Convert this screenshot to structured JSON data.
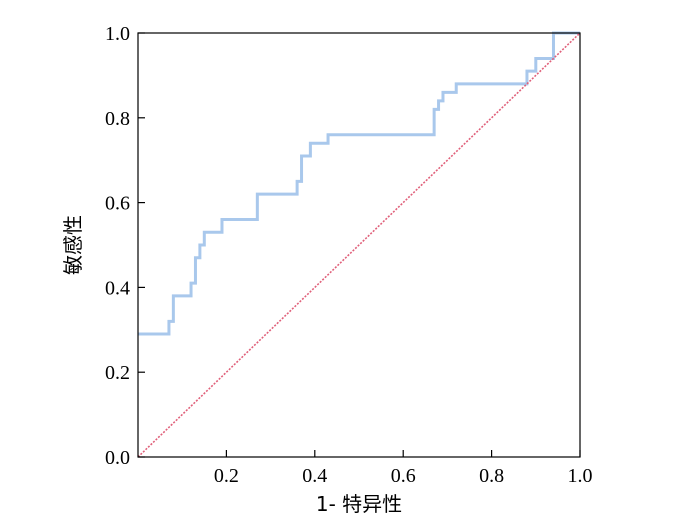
{
  "chart_data": {
    "type": "line",
    "xlabel": "1- 特异性",
    "ylabel": "敏感性",
    "xlim": [
      0,
      1
    ],
    "ylim": [
      0,
      1
    ],
    "x_ticks": [
      "0.2",
      "0.4",
      "0.6",
      "0.8",
      "1.0"
    ],
    "y_ticks": [
      "0.0",
      "0.2",
      "0.4",
      "0.6",
      "0.8",
      "1.0"
    ],
    "grid": false,
    "series": [
      {
        "color": "#a9c8ec",
        "x": [
          0,
          0.07,
          0.07,
          0.08,
          0.08,
          0.12,
          0.12,
          0.13,
          0.13,
          0.14,
          0.14,
          0.15,
          0.15,
          0.19,
          0.19,
          0.27,
          0.27,
          0.36,
          0.36,
          0.37,
          0.37,
          0.39,
          0.39,
          0.43,
          0.43,
          0.67,
          0.67,
          0.68,
          0.68,
          0.69,
          0.69,
          0.72,
          0.72,
          0.88,
          0.88,
          0.9,
          0.9,
          0.94,
          0.94,
          1.0
        ],
        "y": [
          0.29,
          0.29,
          0.32,
          0.32,
          0.38,
          0.38,
          0.41,
          0.41,
          0.47,
          0.47,
          0.5,
          0.5,
          0.53,
          0.53,
          0.56,
          0.56,
          0.62,
          0.62,
          0.65,
          0.65,
          0.71,
          0.71,
          0.74,
          0.74,
          0.76,
          0.76,
          0.82,
          0.82,
          0.84,
          0.84,
          0.86,
          0.86,
          0.88,
          0.88,
          0.91,
          0.91,
          0.94,
          0.94,
          1.0,
          1.0
        ]
      },
      {
        "color": "#e0607a",
        "x": [
          0,
          1
        ],
        "y": [
          0,
          1
        ]
      }
    ]
  }
}
